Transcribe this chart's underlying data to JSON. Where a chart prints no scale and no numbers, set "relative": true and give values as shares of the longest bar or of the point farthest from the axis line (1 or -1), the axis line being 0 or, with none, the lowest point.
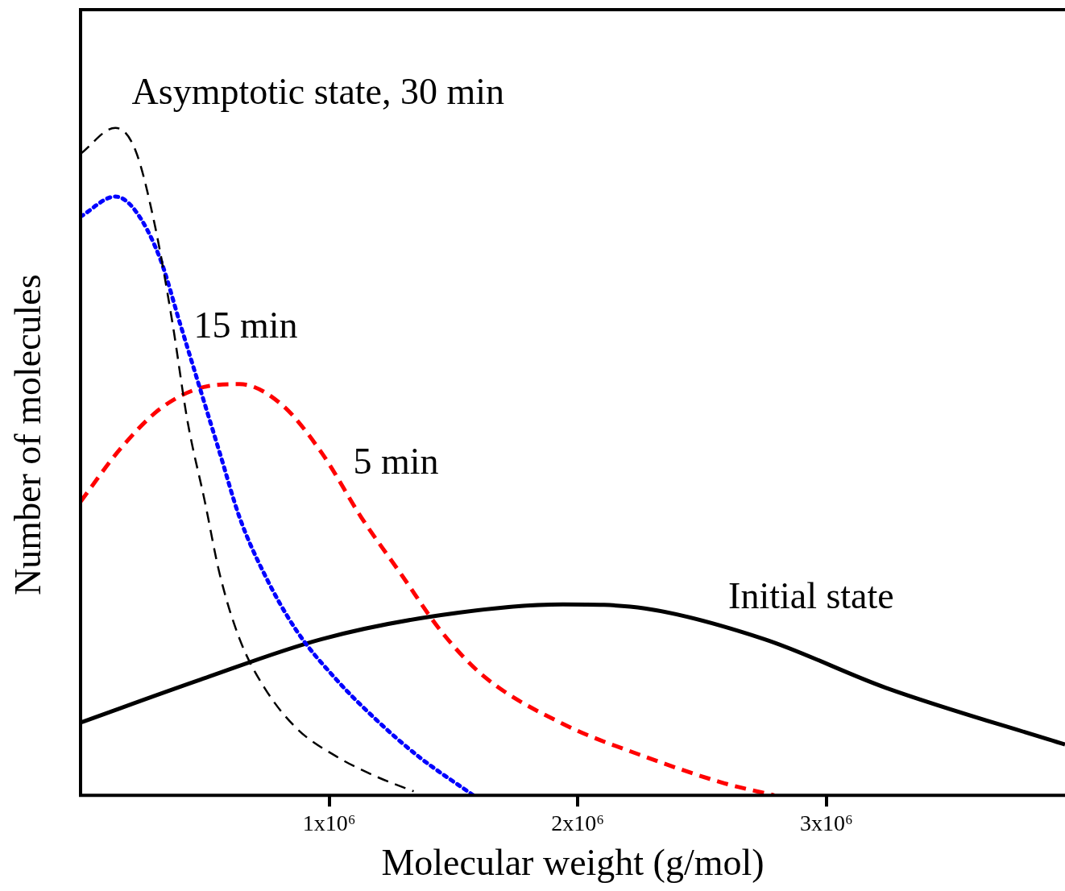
{
  "chart_data": {
    "type": "line",
    "relative": true,
    "xlabel": "Molecular weight (g/mol)",
    "ylabel": "Number of molecules",
    "xlim": [
      0,
      3960000
    ],
    "xticks": [
      {
        "value": 1000000,
        "label": "1x10⁶"
      },
      {
        "value": 2000000,
        "label": "2x10⁶"
      },
      {
        "value": 3000000,
        "label": "3x10⁶"
      }
    ],
    "grid": false,
    "legend": false,
    "marker": "none",
    "series": [
      {
        "color": "#000000",
        "line_style": "dashed",
        "x": [
          0,
          140000,
          220000,
          300000,
          370000,
          430000,
          500000,
          560000,
          640000,
          740000,
          870000,
          1030000,
          1190000,
          1340000
        ],
        "values": [
          0.961,
          1.0,
          0.967,
          0.852,
          0.707,
          0.561,
          0.44,
          0.331,
          0.234,
          0.161,
          0.1,
          0.058,
          0.028,
          0.006
        ]
      },
      {
        "color": "#0000ff",
        "line_style": "dotted",
        "x": [
          0,
          140000,
          220000,
          320000,
          400000,
          480000,
          560000,
          640000,
          740000,
          870000,
          1030000,
          1190000,
          1360000,
          1580000
        ],
        "values": [
          0.867,
          0.897,
          0.876,
          0.804,
          0.707,
          0.61,
          0.513,
          0.416,
          0.331,
          0.246,
          0.173,
          0.113,
          0.058,
          0
        ]
      },
      {
        "color": "#ff0000",
        "line_style": "dashed",
        "x": [
          0,
          160000,
          320000,
          480000,
          640000,
          810000,
          970000,
          1130000,
          1290000,
          1450000,
          1620000,
          1940000,
          2270000,
          2590000,
          2790000
        ],
        "values": [
          0.44,
          0.519,
          0.579,
          0.61,
          0.616,
          0.585,
          0.513,
          0.416,
          0.331,
          0.246,
          0.179,
          0.107,
          0.058,
          0.018,
          0
        ]
      },
      {
        "color": "#000000",
        "line_style": "solid",
        "x": [
          0,
          480000,
          970000,
          1450000,
          1940000,
          2270000,
          2750000,
          3240000,
          3960000
        ],
        "values": [
          0.109,
          0.173,
          0.234,
          0.27,
          0.286,
          0.28,
          0.234,
          0.161,
          0.076
        ]
      }
    ],
    "annotations": [
      "Asymptotic state, 30 min",
      "15 min",
      "5 min",
      "Initial state"
    ]
  }
}
